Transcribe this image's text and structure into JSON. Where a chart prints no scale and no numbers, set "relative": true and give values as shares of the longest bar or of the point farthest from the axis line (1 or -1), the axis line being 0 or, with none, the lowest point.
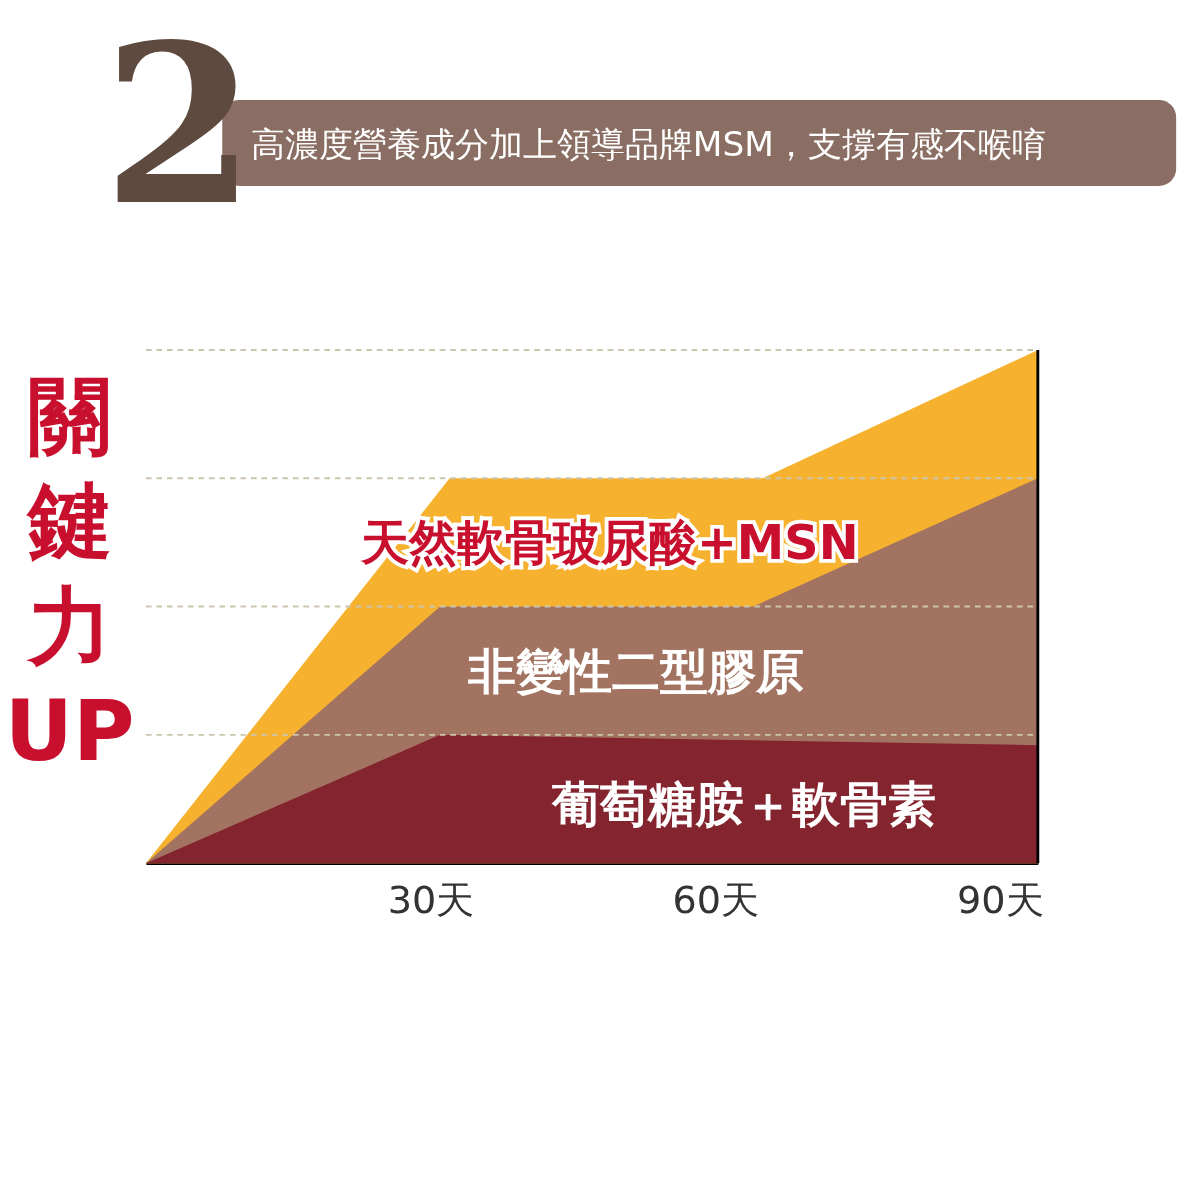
{
  "chart_data": {
    "type": "area",
    "title": "高濃度營養成分加上領導品牌MSM，支撐有感不喉唷",
    "annotations": [
      "2"
    ],
    "ylabel": "關鍵力UP",
    "relative": true,
    "xlim": [
      0,
      94
    ],
    "xticks": [
      {
        "value": 30,
        "label": "30天"
      },
      {
        "value": 60,
        "label": "60天"
      },
      {
        "value": 90,
        "label": "90天"
      }
    ],
    "ref_lines": [
      {
        "axis": "y",
        "value": 0.25,
        "color": "#cdc6ae",
        "line_style": "dashed"
      },
      {
        "axis": "y",
        "value": 0.5,
        "color": "#cdc6ae",
        "line_style": "dashed"
      },
      {
        "axis": "y",
        "value": 0.75,
        "color": "#cdc6ae",
        "line_style": "dashed"
      },
      {
        "axis": "y",
        "value": 1,
        "color": "#cdc6ae",
        "line_style": "dashed"
      }
    ],
    "series": [
      {
        "name": "天然軟骨玻尿酸+MSN",
        "color": "#f6b22f",
        "x": [
          0,
          32,
          65,
          94
        ],
        "values": [
          0,
          0.75,
          0.75,
          1
        ]
      },
      {
        "name": "非變性二型膠原",
        "color": "#a37361",
        "x": [
          0,
          31,
          64,
          94
        ],
        "values": [
          0,
          0.5,
          0.5,
          0.75
        ]
      },
      {
        "name": "葡萄糖胺＋軟骨素",
        "color": "#84242f",
        "x": [
          0,
          31,
          94
        ],
        "values": [
          0,
          0.25,
          0.23
        ]
      }
    ]
  }
}
